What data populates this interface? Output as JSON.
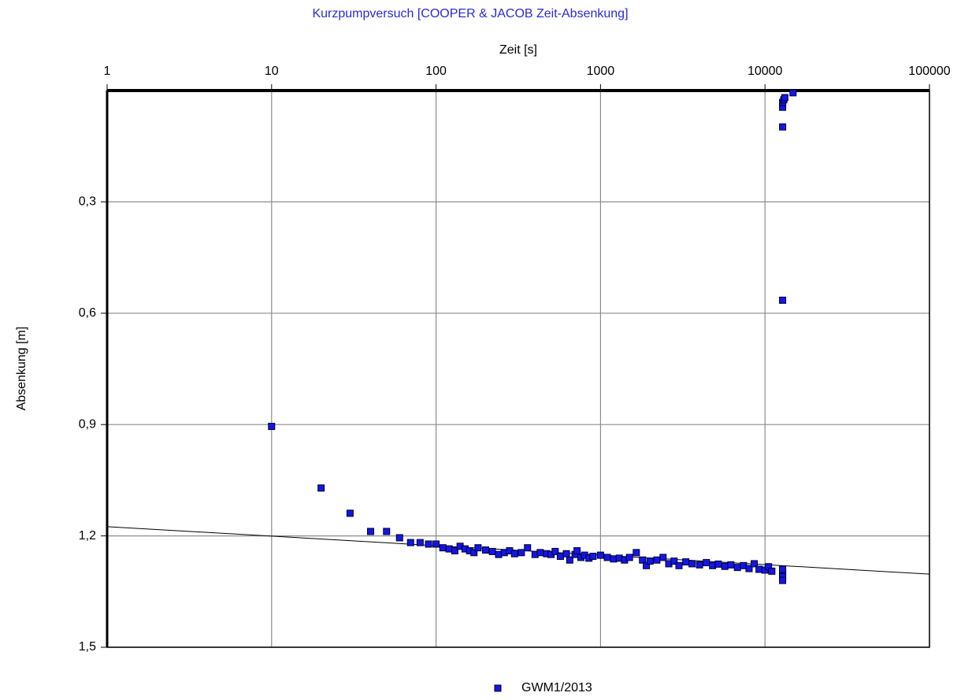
{
  "chart_data": {
    "type": "scatter",
    "title": "Kurzpumpversuch [COOPER & JACOB Zeit-Absenkung]",
    "x_label": "Zeit [s]",
    "y_label": "Absenkung [m]",
    "xscale": "log",
    "xlim": [
      1,
      100000
    ],
    "xticks": [
      1,
      10,
      100,
      1000,
      10000,
      100000
    ],
    "ylim": [
      0,
      1.5
    ],
    "y_inverted": true,
    "yticks": [
      {
        "value": 0.3,
        "label": "0,3"
      },
      {
        "value": 0.6,
        "label": "0,6"
      },
      {
        "value": 0.9,
        "label": "0,9"
      },
      {
        "value": 1.2,
        "label": "1,2"
      },
      {
        "value": 1.5,
        "label": "1,5"
      }
    ],
    "grid": true,
    "legend": "bottom",
    "series": [
      {
        "name": "GWM1/2013",
        "color": "#1515e6",
        "x": [
          10,
          20,
          30,
          40,
          50,
          60,
          70,
          80,
          90,
          100,
          110,
          120,
          130,
          140,
          150,
          160,
          170,
          180,
          200,
          220,
          240,
          260,
          280,
          300,
          330,
          360,
          400,
          430,
          470,
          500,
          530,
          570,
          620,
          650,
          700,
          720,
          760,
          800,
          850,
          900,
          1000,
          1100,
          1200,
          1300,
          1400,
          1500,
          1650,
          1800,
          1900,
          2000,
          2200,
          2400,
          2600,
          2800,
          3000,
          3300,
          3600,
          4000,
          4400,
          4800,
          5200,
          5700,
          6200,
          6800,
          7400,
          8000,
          8600,
          9200,
          10000,
          10500,
          11000,
          12800,
          12800,
          12800,
          12800,
          12800,
          12800,
          12800,
          12800,
          13000,
          13200,
          14800
        ],
        "values": [
          0.905,
          1.071,
          1.139,
          1.188,
          1.188,
          1.205,
          1.218,
          1.218,
          1.222,
          1.222,
          1.232,
          1.235,
          1.24,
          1.228,
          1.235,
          1.24,
          1.245,
          1.232,
          1.238,
          1.242,
          1.25,
          1.245,
          1.24,
          1.248,
          1.245,
          1.232,
          1.25,
          1.245,
          1.248,
          1.25,
          1.242,
          1.255,
          1.248,
          1.265,
          1.25,
          1.24,
          1.258,
          1.252,
          1.26,
          1.255,
          1.252,
          1.258,
          1.262,
          1.26,
          1.265,
          1.258,
          1.245,
          1.265,
          1.28,
          1.268,
          1.265,
          1.258,
          1.275,
          1.268,
          1.28,
          1.27,
          1.275,
          1.278,
          1.272,
          1.28,
          1.276,
          1.282,
          1.278,
          1.285,
          1.28,
          1.288,
          1.275,
          1.29,
          1.292,
          1.283,
          1.295,
          1.3,
          1.31,
          1.32,
          1.29,
          0.565,
          0.098,
          0.045,
          0.032,
          0.025,
          0.019,
          0.006
        ]
      }
    ],
    "trendline": {
      "color": "#000000",
      "x": [
        1,
        100000
      ],
      "values": [
        1.175,
        1.303
      ]
    }
  }
}
